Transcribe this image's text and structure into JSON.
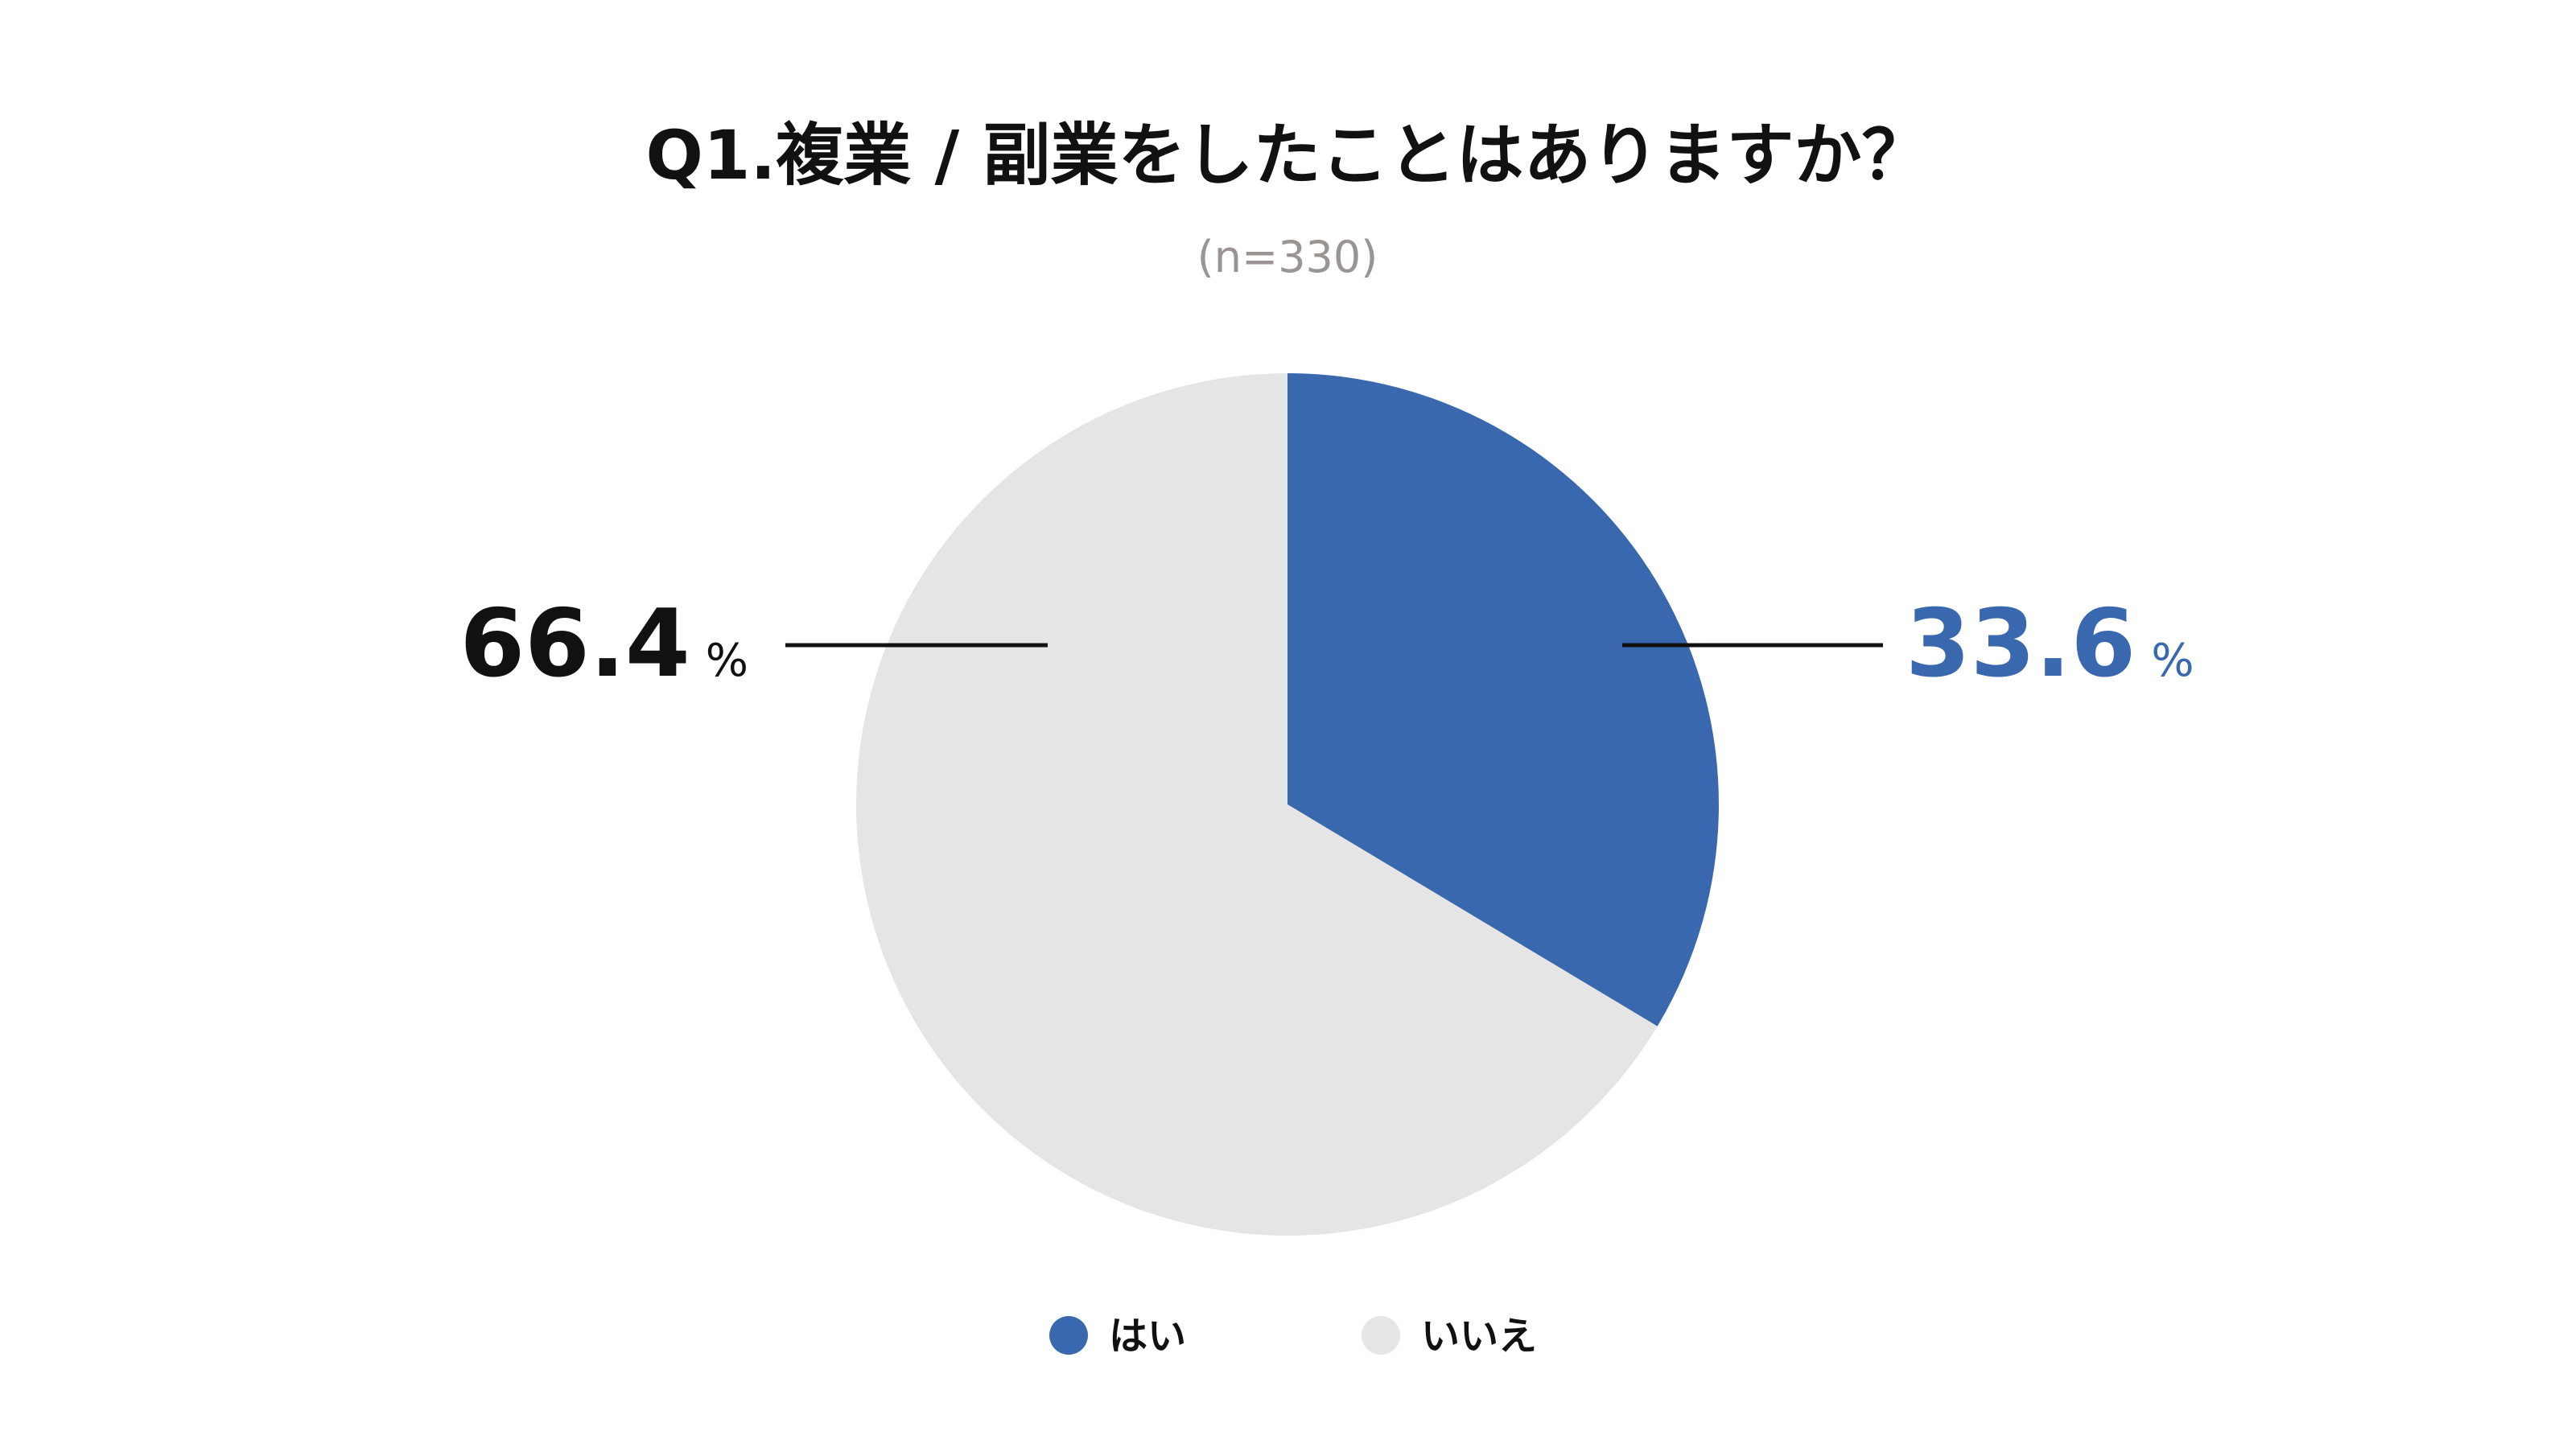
{
  "chart_data": {
    "type": "pie",
    "title": "Q1.複業 / 副業をしたことはありますか？",
    "subtitle": "(n=330)",
    "unit": "%",
    "start_angle_deg": 0,
    "direction": "clockwise",
    "slices": [
      {
        "label": "はい",
        "value": 33.6,
        "value_text": "33.6",
        "color": "#3a68ae"
      },
      {
        "label": "いいえ",
        "value": 66.4,
        "value_text": "66.4",
        "color": "#e5e5e5"
      }
    ],
    "value_label_colors": [
      "#3a68ae",
      "#111111"
    ],
    "legend_placement": "bottom"
  }
}
